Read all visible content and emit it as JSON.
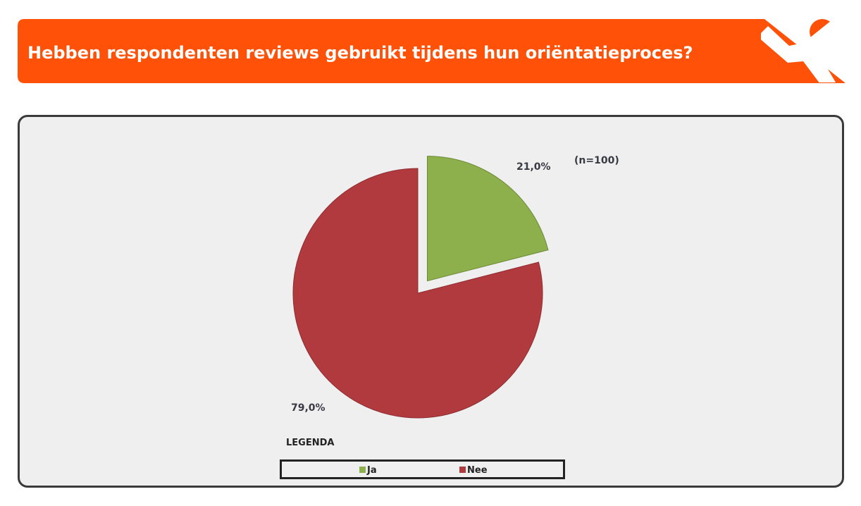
{
  "header": {
    "title": "Hebben respondenten reviews gebruikt tijdens hun oriëntatieproces?",
    "banner_color": "#ff5208",
    "logo_icon": "person-arms-raised-icon"
  },
  "chart_data": {
    "type": "pie",
    "title": "Hebben respondenten reviews gebruikt tijdens hun oriëntatieproces?",
    "note": "(n=100)",
    "categories": [
      "Ja",
      "Nee"
    ],
    "values": [
      21.0,
      79.0
    ],
    "value_labels": [
      "21,0%",
      "79,0%"
    ],
    "colors": [
      "#8db04d",
      "#b13a3e"
    ],
    "exploded": [
      "Ja"
    ],
    "legend_title": "LEGENDA",
    "legend_position": "bottom",
    "background": "#efefef"
  }
}
